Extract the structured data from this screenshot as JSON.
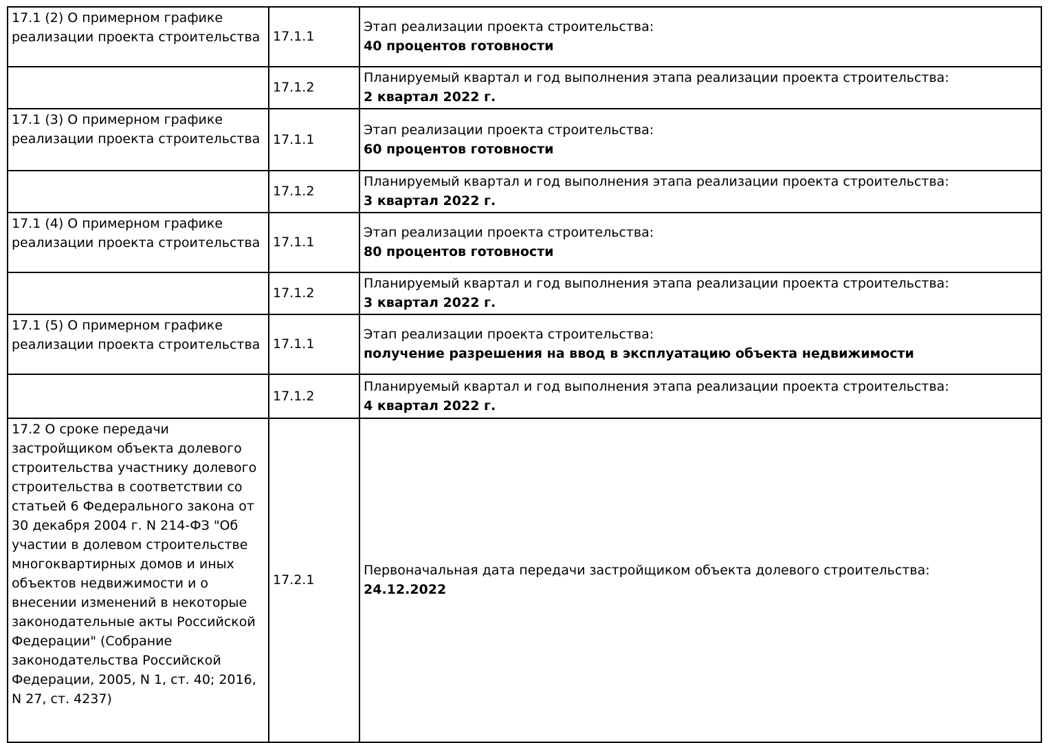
{
  "document": {
    "language": "ru",
    "type": "project-declaration-table",
    "colors": {
      "text": "#000000",
      "border": "#000000",
      "background": "#ffffff"
    },
    "table": {
      "columns": [
        "section",
        "code",
        "content"
      ],
      "rows": [
        {
          "section": "17.1 (2) О примерном графике реализации проекта строительства",
          "code": "17.1.1",
          "label": "Этап реализации проекта строительства:",
          "value": "40 процентов готовности"
        },
        {
          "section": "",
          "code": "17.1.2",
          "label": "Планируемый квартал и год выполнения этапа реализации проекта строительства:",
          "value": "2 квартал 2022 г."
        },
        {
          "section": "17.1 (3) О примерном графике реализации проекта строительства",
          "code": "17.1.1",
          "label": "Этап реализации проекта строительства:",
          "value": "60 процентов готовности"
        },
        {
          "section": "",
          "code": "17.1.2",
          "label": "Планируемый квартал и год выполнения этапа реализации проекта строительства:",
          "value": "3 квартал 2022 г."
        },
        {
          "section": "17.1 (4) О примерном графике реализации проекта строительства",
          "code": "17.1.1",
          "label": "Этап реализации проекта строительства:",
          "value": "80 процентов готовности"
        },
        {
          "section": "",
          "code": "17.1.2",
          "label": "Планируемый квартал и год выполнения этапа реализации проекта строительства:",
          "value": "3 квартал 2022 г."
        },
        {
          "section": "17.1 (5) О примерном графике реализации проекта строительства",
          "code": "17.1.1",
          "label": "Этап реализации проекта строительства:",
          "value": "получение разрешения на ввод в эксплуатацию объекта недвижимости"
        },
        {
          "section": "",
          "code": "17.1.2",
          "label": "Планируемый квартал и год выполнения этапа реализации проекта строительства:",
          "value": "4 квартал 2022 г."
        },
        {
          "section": "17.2 О сроке передачи застройщиком объекта долевого строительства участнику долевого строительства в соответствии со статьей 6 Федерального закона от 30 декабря 2004 г. N 214-ФЗ \"Об участии в долевом строительстве многоквартирных домов и иных объектов недвижимости и о внесении изменений в некоторые законодательные акты Российской Федерации\" (Собрание законодательства Российской Федерации, 2005, N 1, ст. 40; 2016, N 27, ст. 4237)",
          "code": "17.2.1",
          "label": "Первоначальная дата передачи застройщиком объекта долевого строительства:",
          "value": "24.12.2022"
        }
      ]
    }
  }
}
